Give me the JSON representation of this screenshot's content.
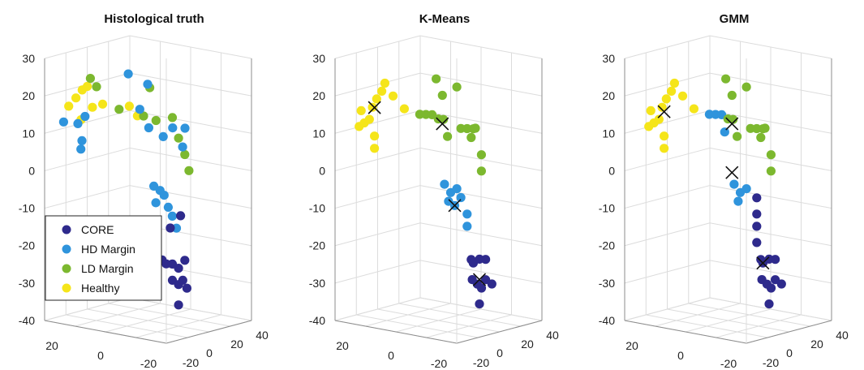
{
  "chart_data": [
    {
      "type": "scatter3d",
      "title": "Histological truth",
      "zlim": [
        -40,
        30
      ],
      "z_ticks": [
        "30",
        "20",
        "10",
        "0",
        "-10",
        "-20",
        "-30",
        "-40"
      ],
      "y_ticks": [
        "20",
        "0",
        "-20"
      ],
      "x_ticks": [
        "-20",
        "0",
        "20",
        "40"
      ],
      "grid": true,
      "legend": {
        "placement": "lower-left",
        "entries": [
          {
            "label": "CORE",
            "color": "#2e2a8c"
          },
          {
            "label": "HD Margin",
            "color": "#2f94dc"
          },
          {
            "label": "LD Margin",
            "color": "#7cb82f"
          },
          {
            "label": "Healthy",
            "color": "#f5e51a"
          }
        ]
      },
      "points": [
        {
          "x": -15,
          "y": 26,
          "z": 12,
          "c": 3
        },
        {
          "x": -12,
          "y": 24,
          "z": 14,
          "c": 3
        },
        {
          "x": -10,
          "y": 22,
          "z": 16,
          "c": 3
        },
        {
          "x": -9,
          "y": 20,
          "z": 17,
          "c": 3
        },
        {
          "x": -13,
          "y": 21,
          "z": 9,
          "c": 3
        },
        {
          "x": -8,
          "y": 18,
          "z": 12,
          "c": 3
        },
        {
          "x": -6,
          "y": 14,
          "z": 13,
          "c": 3
        },
        {
          "x": 0,
          "y": 4,
          "z": 13,
          "c": 3
        },
        {
          "x": 0,
          "y": 0,
          "z": 11,
          "c": 3
        },
        {
          "x": -8,
          "y": 19,
          "z": 19,
          "c": 2
        },
        {
          "x": -6,
          "y": 17,
          "z": 17,
          "c": 2
        },
        {
          "x": -2,
          "y": 8,
          "z": 12,
          "c": 2
        },
        {
          "x": 2,
          "y": -2,
          "z": 11,
          "c": 2
        },
        {
          "x": 4,
          "y": -4,
          "z": 18,
          "c": 2
        },
        {
          "x": 6,
          "y": -6,
          "z": 10,
          "c": 2
        },
        {
          "x": 10,
          "y": -12,
          "z": 11,
          "c": 2
        },
        {
          "x": 12,
          "y": -14,
          "z": 6,
          "c": 2
        },
        {
          "x": 14,
          "y": -16,
          "z": 2,
          "c": 2
        },
        {
          "x": 16,
          "y": -17,
          "z": -2,
          "c": 2
        },
        {
          "x": -16,
          "y": 28,
          "z": 8,
          "c": 1
        },
        {
          "x": -14,
          "y": 22,
          "z": 8,
          "c": 1
        },
        {
          "x": -14,
          "y": 20,
          "z": 4,
          "c": 1
        },
        {
          "x": -15,
          "y": 20,
          "z": 2,
          "c": 1
        },
        {
          "x": -13,
          "y": 19,
          "z": 10,
          "c": 1
        },
        {
          "x": -1,
          "y": 4,
          "z": 21,
          "c": 1
        },
        {
          "x": 2,
          "y": -4,
          "z": 19,
          "c": 1
        },
        {
          "x": 6,
          "y": 2,
          "z": 12,
          "c": 1
        },
        {
          "x": 5,
          "y": -3,
          "z": 8,
          "c": 1
        },
        {
          "x": 9,
          "y": -8,
          "z": 6,
          "c": 1
        },
        {
          "x": 14,
          "y": -10,
          "z": 8,
          "c": 1
        },
        {
          "x": 18,
          "y": -14,
          "z": 8,
          "c": 1
        },
        {
          "x": 12,
          "y": -16,
          "z": 4,
          "c": 1
        },
        {
          "x": 4,
          "y": -6,
          "z": -6,
          "c": 1
        },
        {
          "x": 6,
          "y": -8,
          "z": -7,
          "c": 1
        },
        {
          "x": 6,
          "y": -10,
          "z": -8,
          "c": 1
        },
        {
          "x": 4,
          "y": -7,
          "z": -10,
          "c": 1
        },
        {
          "x": 8,
          "y": -11,
          "z": -11,
          "c": 1
        },
        {
          "x": 8,
          "y": -13,
          "z": -13,
          "c": 1
        },
        {
          "x": 10,
          "y": -14,
          "z": -16,
          "c": 1
        },
        {
          "x": 12,
          "y": -15,
          "z": -13,
          "c": 0
        },
        {
          "x": 8,
          "y": -12,
          "z": -16,
          "c": 0
        },
        {
          "x": 6,
          "y": -9,
          "z": -24,
          "c": 0
        },
        {
          "x": 8,
          "y": -10,
          "z": -25,
          "c": 0
        },
        {
          "x": 10,
          "y": -12,
          "z": -25,
          "c": 0
        },
        {
          "x": 12,
          "y": -14,
          "z": -26,
          "c": 0
        },
        {
          "x": 14,
          "y": -16,
          "z": -24,
          "c": 0
        },
        {
          "x": 10,
          "y": -12,
          "z": -29,
          "c": 0
        },
        {
          "x": 12,
          "y": -14,
          "z": -30,
          "c": 0
        },
        {
          "x": 14,
          "y": -15,
          "z": -29,
          "c": 0
        },
        {
          "x": 16,
          "y": -16,
          "z": -31,
          "c": 0
        },
        {
          "x": 12,
          "y": -14,
          "z": -35,
          "c": 0
        }
      ],
      "centroids": []
    },
    {
      "type": "scatter3d",
      "title": "K-Means",
      "zlim": [
        -40,
        30
      ],
      "z_ticks": [
        "30",
        "20",
        "10",
        "0",
        "-10",
        "-20",
        "-30",
        "-40"
      ],
      "y_ticks": [
        "20",
        "0",
        "-20"
      ],
      "x_ticks": [
        "-20",
        "0",
        "20",
        "40"
      ],
      "grid": true,
      "points": [
        {
          "x": -15,
          "y": 26,
          "z": 7,
          "c": 3
        },
        {
          "x": -14,
          "y": 24,
          "z": 8,
          "c": 3
        },
        {
          "x": -13,
          "y": 22,
          "z": 9,
          "c": 3
        },
        {
          "x": -15,
          "y": 25,
          "z": 11,
          "c": 3
        },
        {
          "x": -12,
          "y": 21,
          "z": 12,
          "c": 3
        },
        {
          "x": -10,
          "y": 20,
          "z": 14,
          "c": 3
        },
        {
          "x": -9,
          "y": 18,
          "z": 16,
          "c": 3
        },
        {
          "x": -8,
          "y": 17,
          "z": 18,
          "c": 3
        },
        {
          "x": -6,
          "y": 14,
          "z": 15,
          "c": 3
        },
        {
          "x": -3,
          "y": 10,
          "z": 12,
          "c": 3
        },
        {
          "x": -12,
          "y": 20,
          "z": 2,
          "c": 3
        },
        {
          "x": -12,
          "y": 20,
          "z": 5,
          "c": 3
        },
        {
          "x": 0,
          "y": 4,
          "z": 11,
          "c": 2
        },
        {
          "x": 2,
          "y": 2,
          "z": 11,
          "c": 2
        },
        {
          "x": 4,
          "y": 0,
          "z": 11,
          "c": 2
        },
        {
          "x": 6,
          "y": -2,
          "z": 10,
          "c": 2
        },
        {
          "x": 7,
          "y": -4,
          "z": 10,
          "c": 2
        },
        {
          "x": 4,
          "y": -2,
          "z": 20,
          "c": 2
        },
        {
          "x": 6,
          "y": -4,
          "z": 16,
          "c": 2
        },
        {
          "x": 12,
          "y": -8,
          "z": 18,
          "c": 2
        },
        {
          "x": 7,
          "y": -6,
          "z": 6,
          "c": 2
        },
        {
          "x": 12,
          "y": -10,
          "z": 8,
          "c": 2
        },
        {
          "x": 14,
          "y": -12,
          "z": 8,
          "c": 2
        },
        {
          "x": 16,
          "y": -14,
          "z": 8,
          "c": 2
        },
        {
          "x": 14,
          "y": -14,
          "z": 6,
          "c": 2
        },
        {
          "x": 18,
          "y": -14,
          "z": 8,
          "c": 2
        },
        {
          "x": 16,
          "y": -18,
          "z": 2,
          "c": 2
        },
        {
          "x": 16,
          "y": -18,
          "z": -2,
          "c": 2
        },
        {
          "x": 8,
          "y": -4,
          "z": -6,
          "c": 1
        },
        {
          "x": 10,
          "y": -6,
          "z": -8,
          "c": 1
        },
        {
          "x": 8,
          "y": -6,
          "z": -10,
          "c": 1
        },
        {
          "x": 12,
          "y": -8,
          "z": -7,
          "c": 1
        },
        {
          "x": 12,
          "y": -10,
          "z": -9,
          "c": 1
        },
        {
          "x": 14,
          "y": -12,
          "z": -13,
          "c": 1
        },
        {
          "x": 14,
          "y": -12,
          "z": -16,
          "c": 1
        },
        {
          "x": 10,
          "y": -8,
          "z": -11,
          "c": 1
        },
        {
          "x": 14,
          "y": -14,
          "z": -24,
          "c": 0
        },
        {
          "x": 16,
          "y": -14,
          "z": -25,
          "c": 0
        },
        {
          "x": 18,
          "y": -16,
          "z": -24,
          "c": 0
        },
        {
          "x": 20,
          "y": -18,
          "z": -24,
          "c": 0
        },
        {
          "x": 15,
          "y": -14,
          "z": -29,
          "c": 0
        },
        {
          "x": 16,
          "y": -16,
          "z": -30,
          "c": 0
        },
        {
          "x": 18,
          "y": -17,
          "z": -31,
          "c": 0
        },
        {
          "x": 20,
          "y": -18,
          "z": -29,
          "c": 0
        },
        {
          "x": 22,
          "y": -20,
          "z": -30,
          "c": 0
        },
        {
          "x": 18,
          "y": -16,
          "z": -35,
          "c": 0
        }
      ],
      "centroids": [
        {
          "x": -12,
          "y": 20,
          "z": 12
        },
        {
          "x": 6,
          "y": -4,
          "z": 9
        },
        {
          "x": 10,
          "y": -8,
          "z": -11
        },
        {
          "x": 18,
          "y": -16,
          "z": -29
        }
      ]
    },
    {
      "type": "scatter3d",
      "title": "GMM",
      "zlim": [
        -40,
        30
      ],
      "z_ticks": [
        "30",
        "20",
        "10",
        "0",
        "-10",
        "-20",
        "-30",
        "-40"
      ],
      "y_ticks": [
        "20",
        "0",
        "-20"
      ],
      "x_ticks": [
        "-20",
        "0",
        "20",
        "40"
      ],
      "grid": true,
      "points": [
        {
          "x": -15,
          "y": 26,
          "z": 7,
          "c": 3
        },
        {
          "x": -14,
          "y": 24,
          "z": 8,
          "c": 3
        },
        {
          "x": -13,
          "y": 22,
          "z": 9,
          "c": 3
        },
        {
          "x": -15,
          "y": 25,
          "z": 11,
          "c": 3
        },
        {
          "x": -12,
          "y": 21,
          "z": 12,
          "c": 3
        },
        {
          "x": -10,
          "y": 20,
          "z": 14,
          "c": 3
        },
        {
          "x": -9,
          "y": 18,
          "z": 16,
          "c": 3
        },
        {
          "x": -8,
          "y": 17,
          "z": 18,
          "c": 3
        },
        {
          "x": -6,
          "y": 14,
          "z": 15,
          "c": 3
        },
        {
          "x": -3,
          "y": 10,
          "z": 12,
          "c": 3
        },
        {
          "x": -12,
          "y": 20,
          "z": 2,
          "c": 3
        },
        {
          "x": -12,
          "y": 20,
          "z": 5,
          "c": 3
        },
        {
          "x": 0,
          "y": 4,
          "z": 11,
          "c": 1
        },
        {
          "x": 2,
          "y": 2,
          "z": 11,
          "c": 1
        },
        {
          "x": 4,
          "y": 0,
          "z": 11,
          "c": 1
        },
        {
          "x": 3,
          "y": -2,
          "z": 7,
          "c": 1
        },
        {
          "x": 6,
          "y": -2,
          "z": 10,
          "c": 2
        },
        {
          "x": 7,
          "y": -4,
          "z": 10,
          "c": 2
        },
        {
          "x": 4,
          "y": -2,
          "z": 20,
          "c": 2
        },
        {
          "x": 6,
          "y": -4,
          "z": 16,
          "c": 2
        },
        {
          "x": 12,
          "y": -8,
          "z": 18,
          "c": 2
        },
        {
          "x": 7,
          "y": -6,
          "z": 6,
          "c": 2
        },
        {
          "x": 12,
          "y": -10,
          "z": 8,
          "c": 2
        },
        {
          "x": 14,
          "y": -12,
          "z": 8,
          "c": 2
        },
        {
          "x": 16,
          "y": -14,
          "z": 8,
          "c": 2
        },
        {
          "x": 14,
          "y": -14,
          "z": 6,
          "c": 2
        },
        {
          "x": 18,
          "y": -14,
          "z": 8,
          "c": 2
        },
        {
          "x": 16,
          "y": -18,
          "z": 2,
          "c": 2
        },
        {
          "x": 16,
          "y": -18,
          "z": -2,
          "c": 2
        },
        {
          "x": 8,
          "y": -4,
          "z": -6,
          "c": 1
        },
        {
          "x": 10,
          "y": -6,
          "z": -8,
          "c": 1
        },
        {
          "x": 8,
          "y": -6,
          "z": -10,
          "c": 1
        },
        {
          "x": 12,
          "y": -8,
          "z": -7,
          "c": 1
        },
        {
          "x": 14,
          "y": -12,
          "z": -9,
          "c": 0
        },
        {
          "x": 14,
          "y": -12,
          "z": -13,
          "c": 0
        },
        {
          "x": 14,
          "y": -12,
          "z": -16,
          "c": 0
        },
        {
          "x": 14,
          "y": -12,
          "z": -20,
          "c": 0
        },
        {
          "x": 14,
          "y": -14,
          "z": -24,
          "c": 0
        },
        {
          "x": 16,
          "y": -14,
          "z": -25,
          "c": 0
        },
        {
          "x": 18,
          "y": -16,
          "z": -24,
          "c": 0
        },
        {
          "x": 20,
          "y": -18,
          "z": -24,
          "c": 0
        },
        {
          "x": 15,
          "y": -14,
          "z": -29,
          "c": 0
        },
        {
          "x": 16,
          "y": -16,
          "z": -30,
          "c": 0
        },
        {
          "x": 18,
          "y": -17,
          "z": -31,
          "c": 0
        },
        {
          "x": 20,
          "y": -18,
          "z": -29,
          "c": 0
        },
        {
          "x": 22,
          "y": -20,
          "z": -30,
          "c": 0
        },
        {
          "x": 18,
          "y": -16,
          "z": -35,
          "c": 0
        }
      ],
      "centroids": [
        {
          "x": -12,
          "y": 20,
          "z": 11
        },
        {
          "x": 6,
          "y": -4,
          "z": 9
        },
        {
          "x": 6,
          "y": -4,
          "z": -3
        },
        {
          "x": 16,
          "y": -14,
          "z": -25
        }
      ]
    }
  ]
}
